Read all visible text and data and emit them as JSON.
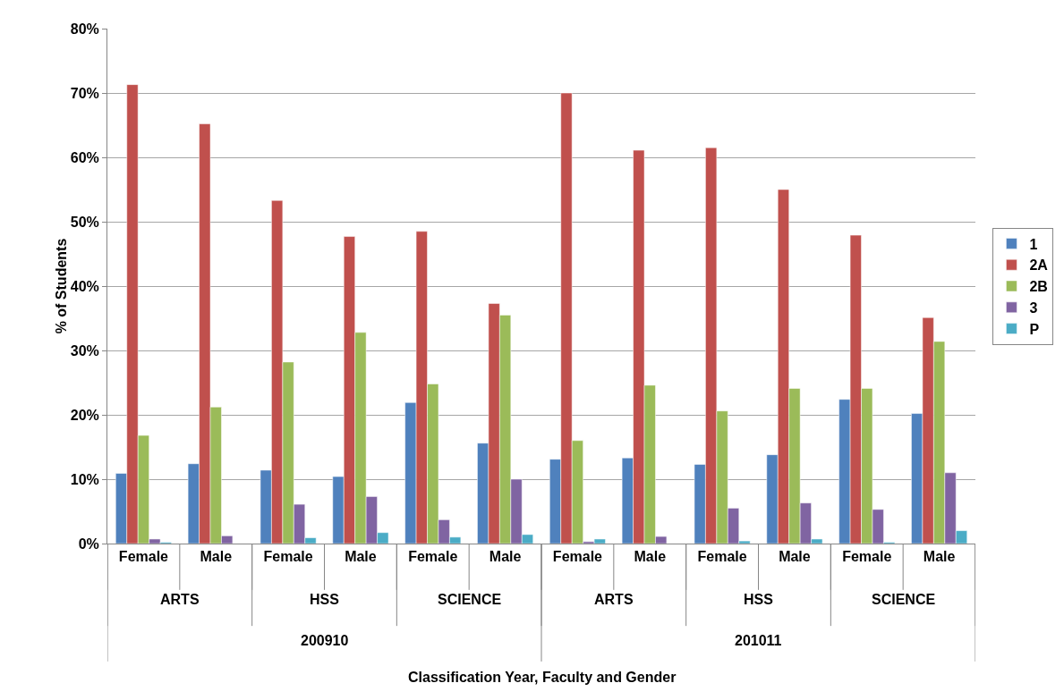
{
  "chart_data": {
    "type": "bar",
    "ylabel": "% of Students",
    "categories": [
      "Female",
      "Male",
      "Female",
      "Male",
      "Female",
      "Male",
      "Female",
      "Male",
      "Female",
      "Male",
      "Female",
      "Male"
    ],
    "annotations": [
      "ARTS",
      "HSS",
      "SCIENCE",
      "ARTS",
      "HSS",
      "SCIENCE",
      "200910",
      "201011",
      "Classification Year, Faculty and Gender"
    ],
    "series": [
      {
        "name": "1",
        "color": "#4f81bd",
        "values": [
          10.9,
          12.4,
          11.4,
          10.4,
          21.9,
          15.6,
          13.1,
          13.3,
          12.3,
          13.8,
          22.4,
          20.2
        ]
      },
      {
        "name": "2A",
        "color": "#c0504d",
        "values": [
          71.3,
          65.2,
          53.3,
          47.7,
          48.5,
          37.3,
          70.0,
          61.1,
          61.5,
          55.0,
          47.9,
          35.1
        ]
      },
      {
        "name": "2B",
        "color": "#9bbb59",
        "values": [
          16.8,
          21.2,
          28.2,
          32.8,
          24.8,
          35.5,
          16.0,
          24.6,
          20.6,
          24.1,
          24.1,
          31.4
        ]
      },
      {
        "name": "3",
        "color": "#8064a2",
        "values": [
          0.7,
          1.2,
          6.1,
          7.3,
          3.7,
          10.0,
          0.3,
          1.1,
          5.5,
          6.3,
          5.3,
          11.0
        ]
      },
      {
        "name": "P",
        "color": "#4bacc6",
        "values": [
          0.2,
          null,
          0.9,
          1.7,
          1.0,
          1.4,
          0.7,
          null,
          0.4,
          0.7,
          0.2,
          2.0
        ]
      }
    ],
    "ylim": [
      0,
      80
    ],
    "yticks": [
      {
        "value": 0,
        "label": "0%"
      },
      {
        "value": 10,
        "label": "10%"
      },
      {
        "value": 20,
        "label": "20%"
      },
      {
        "value": 30,
        "label": "30%"
      },
      {
        "value": 40,
        "label": "40%"
      },
      {
        "value": 50,
        "label": "50%"
      },
      {
        "value": 60,
        "label": "60%"
      },
      {
        "value": 70,
        "label": "70%"
      },
      {
        "value": 80,
        "label": "80%"
      }
    ],
    "grid": "y",
    "legend": "right"
  }
}
